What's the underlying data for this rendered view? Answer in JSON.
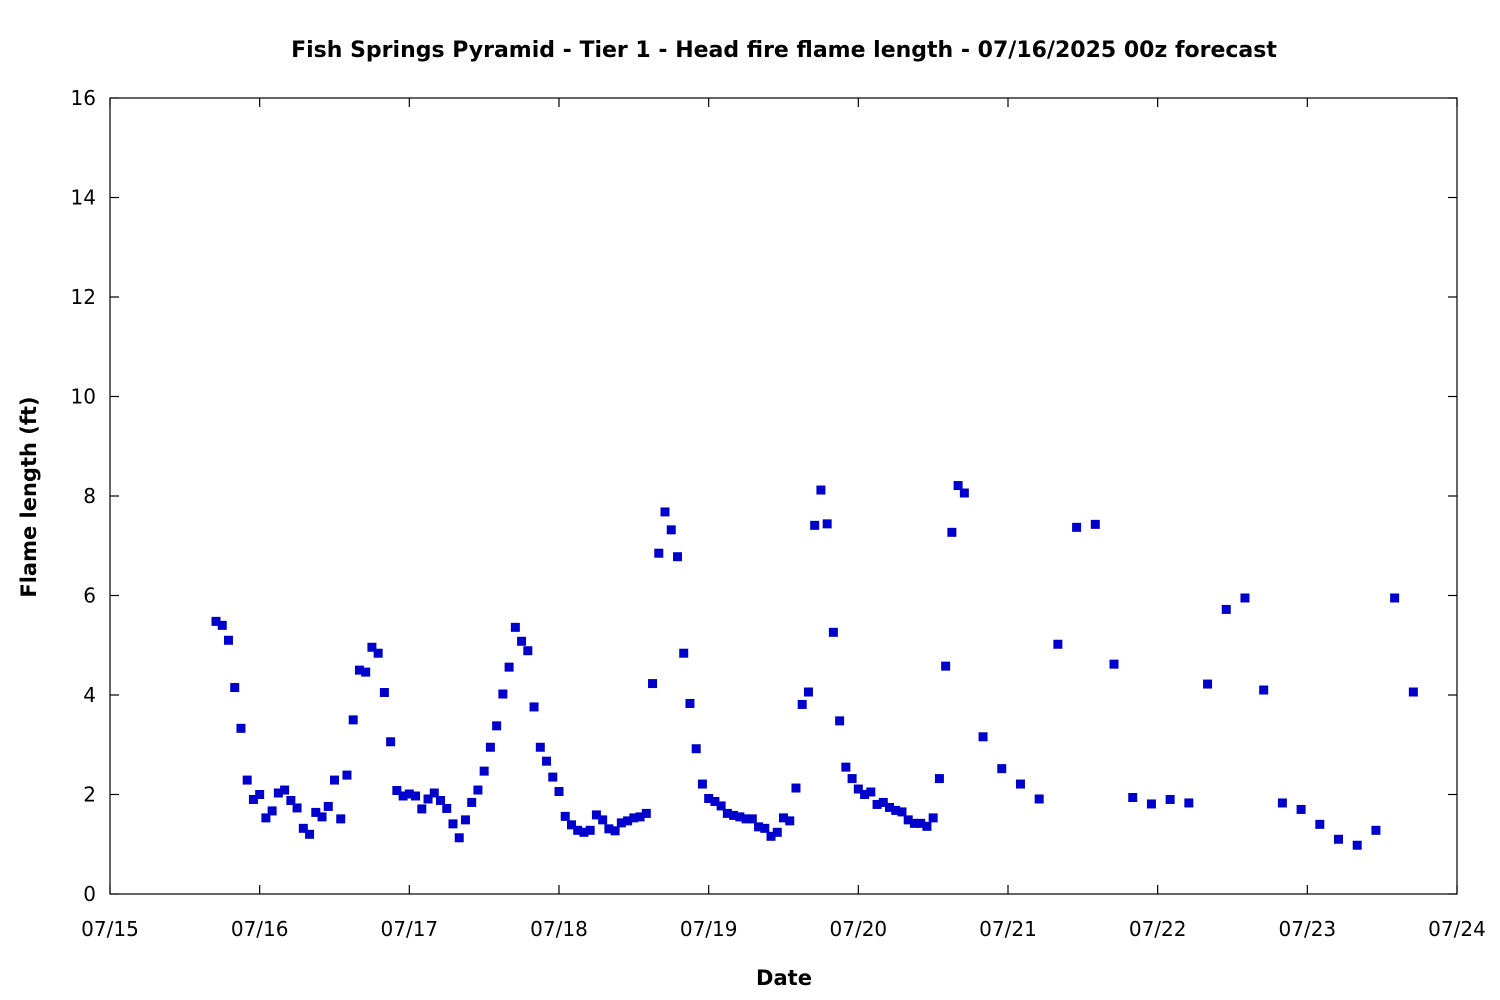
{
  "chart_data": {
    "type": "scatter",
    "title": "Fish Springs Pyramid - Tier 1 - Head fire flame length - 07/16/2025 00z forecast",
    "xlabel": "Date",
    "ylabel": "Flame length (ft)",
    "x_ticks": [
      "07/15",
      "07/16",
      "07/17",
      "07/18",
      "07/19",
      "07/20",
      "07/21",
      "07/22",
      "07/23",
      "07/24"
    ],
    "xlim": [
      "2025-07-15T00:00",
      "2025-07-24T00:00"
    ],
    "ylim": [
      0,
      16
    ],
    "y_ticks": [
      "0",
      "2",
      "4",
      "6",
      "8",
      "10",
      "12",
      "14",
      "16"
    ],
    "grid": false,
    "marker_color": "#0000cc",
    "series": [
      {
        "points": [
          [
            "2025-07-15T17:00",
            5.48
          ],
          [
            "2025-07-15T18:00",
            5.4
          ],
          [
            "2025-07-15T19:00",
            5.1
          ],
          [
            "2025-07-15T20:00",
            4.15
          ],
          [
            "2025-07-15T21:00",
            3.33
          ],
          [
            "2025-07-15T22:00",
            2.29
          ],
          [
            "2025-07-15T23:00",
            1.9
          ],
          [
            "2025-07-16T00:00",
            2.0
          ],
          [
            "2025-07-16T01:00",
            1.53
          ],
          [
            "2025-07-16T02:00",
            1.67
          ],
          [
            "2025-07-16T03:00",
            2.03
          ],
          [
            "2025-07-16T04:00",
            2.09
          ],
          [
            "2025-07-16T05:00",
            1.88
          ],
          [
            "2025-07-16T06:00",
            1.73
          ],
          [
            "2025-07-16T07:00",
            1.32
          ],
          [
            "2025-07-16T08:00",
            1.2
          ],
          [
            "2025-07-16T09:00",
            1.64
          ],
          [
            "2025-07-16T10:00",
            1.55
          ],
          [
            "2025-07-16T11:00",
            1.76
          ],
          [
            "2025-07-16T12:00",
            2.29
          ],
          [
            "2025-07-16T13:00",
            1.51
          ],
          [
            "2025-07-16T14:00",
            2.39
          ],
          [
            "2025-07-16T15:00",
            3.5
          ],
          [
            "2025-07-16T16:00",
            4.5
          ],
          [
            "2025-07-16T17:00",
            4.46
          ],
          [
            "2025-07-16T18:00",
            4.96
          ],
          [
            "2025-07-16T19:00",
            4.84
          ],
          [
            "2025-07-16T20:00",
            4.05
          ],
          [
            "2025-07-16T21:00",
            3.06
          ],
          [
            "2025-07-16T22:00",
            2.08
          ],
          [
            "2025-07-16T23:00",
            1.97
          ],
          [
            "2025-07-17T00:00",
            2.01
          ],
          [
            "2025-07-17T01:00",
            1.97
          ],
          [
            "2025-07-17T02:00",
            1.71
          ],
          [
            "2025-07-17T03:00",
            1.91
          ],
          [
            "2025-07-17T04:00",
            2.03
          ],
          [
            "2025-07-17T05:00",
            1.88
          ],
          [
            "2025-07-17T06:00",
            1.72
          ],
          [
            "2025-07-17T07:00",
            1.41
          ],
          [
            "2025-07-17T08:00",
            1.13
          ],
          [
            "2025-07-17T09:00",
            1.49
          ],
          [
            "2025-07-17T10:00",
            1.84
          ],
          [
            "2025-07-17T11:00",
            2.09
          ],
          [
            "2025-07-17T12:00",
            2.47
          ],
          [
            "2025-07-17T13:00",
            2.95
          ],
          [
            "2025-07-17T14:00",
            3.38
          ],
          [
            "2025-07-17T15:00",
            4.02
          ],
          [
            "2025-07-17T16:00",
            4.56
          ],
          [
            "2025-07-17T17:00",
            5.36
          ],
          [
            "2025-07-17T18:00",
            5.08
          ],
          [
            "2025-07-17T19:00",
            4.89
          ],
          [
            "2025-07-17T20:00",
            3.76
          ],
          [
            "2025-07-17T21:00",
            2.95
          ],
          [
            "2025-07-17T22:00",
            2.67
          ],
          [
            "2025-07-17T23:00",
            2.35
          ],
          [
            "2025-07-18T00:00",
            2.06
          ],
          [
            "2025-07-18T01:00",
            1.56
          ],
          [
            "2025-07-18T02:00",
            1.39
          ],
          [
            "2025-07-18T03:00",
            1.28
          ],
          [
            "2025-07-18T04:00",
            1.24
          ],
          [
            "2025-07-18T05:00",
            1.28
          ],
          [
            "2025-07-18T06:00",
            1.59
          ],
          [
            "2025-07-18T07:00",
            1.49
          ],
          [
            "2025-07-18T08:00",
            1.31
          ],
          [
            "2025-07-18T09:00",
            1.27
          ],
          [
            "2025-07-18T10:00",
            1.43
          ],
          [
            "2025-07-18T11:00",
            1.47
          ],
          [
            "2025-07-18T12:00",
            1.53
          ],
          [
            "2025-07-18T13:00",
            1.55
          ],
          [
            "2025-07-18T14:00",
            1.62
          ],
          [
            "2025-07-18T15:00",
            4.23
          ],
          [
            "2025-07-18T16:00",
            6.85
          ],
          [
            "2025-07-18T17:00",
            7.68
          ],
          [
            "2025-07-18T18:00",
            7.32
          ],
          [
            "2025-07-18T19:00",
            6.78
          ],
          [
            "2025-07-18T20:00",
            4.84
          ],
          [
            "2025-07-18T21:00",
            3.83
          ],
          [
            "2025-07-18T22:00",
            2.92
          ],
          [
            "2025-07-18T23:00",
            2.21
          ],
          [
            "2025-07-19T00:00",
            1.92
          ],
          [
            "2025-07-19T01:00",
            1.86
          ],
          [
            "2025-07-19T02:00",
            1.77
          ],
          [
            "2025-07-19T03:00",
            1.62
          ],
          [
            "2025-07-19T04:00",
            1.58
          ],
          [
            "2025-07-19T05:00",
            1.55
          ],
          [
            "2025-07-19T06:00",
            1.51
          ],
          [
            "2025-07-19T07:00",
            1.51
          ],
          [
            "2025-07-19T08:00",
            1.35
          ],
          [
            "2025-07-19T09:00",
            1.32
          ],
          [
            "2025-07-19T10:00",
            1.16
          ],
          [
            "2025-07-19T11:00",
            1.24
          ],
          [
            "2025-07-19T12:00",
            1.53
          ],
          [
            "2025-07-19T13:00",
            1.47
          ],
          [
            "2025-07-19T14:00",
            2.13
          ],
          [
            "2025-07-19T15:00",
            3.81
          ],
          [
            "2025-07-19T16:00",
            4.06
          ],
          [
            "2025-07-19T17:00",
            7.41
          ],
          [
            "2025-07-19T18:00",
            8.12
          ],
          [
            "2025-07-19T19:00",
            7.44
          ],
          [
            "2025-07-19T20:00",
            5.26
          ],
          [
            "2025-07-19T21:00",
            3.48
          ],
          [
            "2025-07-19T22:00",
            2.55
          ],
          [
            "2025-07-19T23:00",
            2.32
          ],
          [
            "2025-07-20T00:00",
            2.11
          ],
          [
            "2025-07-20T01:00",
            2.0
          ],
          [
            "2025-07-20T02:00",
            2.05
          ],
          [
            "2025-07-20T03:00",
            1.8
          ],
          [
            "2025-07-20T04:00",
            1.84
          ],
          [
            "2025-07-20T05:00",
            1.74
          ],
          [
            "2025-07-20T06:00",
            1.68
          ],
          [
            "2025-07-20T07:00",
            1.65
          ],
          [
            "2025-07-20T08:00",
            1.49
          ],
          [
            "2025-07-20T09:00",
            1.42
          ],
          [
            "2025-07-20T10:00",
            1.42
          ],
          [
            "2025-07-20T11:00",
            1.36
          ],
          [
            "2025-07-20T12:00",
            1.53
          ],
          [
            "2025-07-20T13:00",
            2.32
          ],
          [
            "2025-07-20T14:00",
            4.58
          ],
          [
            "2025-07-20T15:00",
            7.27
          ],
          [
            "2025-07-20T16:00",
            8.21
          ],
          [
            "2025-07-20T17:00",
            8.06
          ],
          [
            "2025-07-20T20:00",
            3.16
          ],
          [
            "2025-07-20T23:00",
            2.52
          ],
          [
            "2025-07-21T02:00",
            2.21
          ],
          [
            "2025-07-21T05:00",
            1.91
          ],
          [
            "2025-07-21T08:00",
            5.02
          ],
          [
            "2025-07-21T11:00",
            7.37
          ],
          [
            "2025-07-21T14:00",
            7.43
          ],
          [
            "2025-07-21T17:00",
            4.62
          ],
          [
            "2025-07-21T20:00",
            1.94
          ],
          [
            "2025-07-21T23:00",
            1.81
          ],
          [
            "2025-07-22T02:00",
            1.9
          ],
          [
            "2025-07-22T05:00",
            1.83
          ],
          [
            "2025-07-22T08:00",
            4.22
          ],
          [
            "2025-07-22T11:00",
            5.72
          ],
          [
            "2025-07-22T14:00",
            5.95
          ],
          [
            "2025-07-22T17:00",
            4.1
          ],
          [
            "2025-07-22T20:00",
            1.83
          ],
          [
            "2025-07-22T23:00",
            1.7
          ],
          [
            "2025-07-23T02:00",
            1.4
          ],
          [
            "2025-07-23T05:00",
            1.1
          ],
          [
            "2025-07-23T08:00",
            0.98
          ],
          [
            "2025-07-23T11:00",
            1.28
          ],
          [
            "2025-07-23T14:00",
            5.95
          ],
          [
            "2025-07-23T17:00",
            4.06
          ]
        ]
      }
    ]
  }
}
